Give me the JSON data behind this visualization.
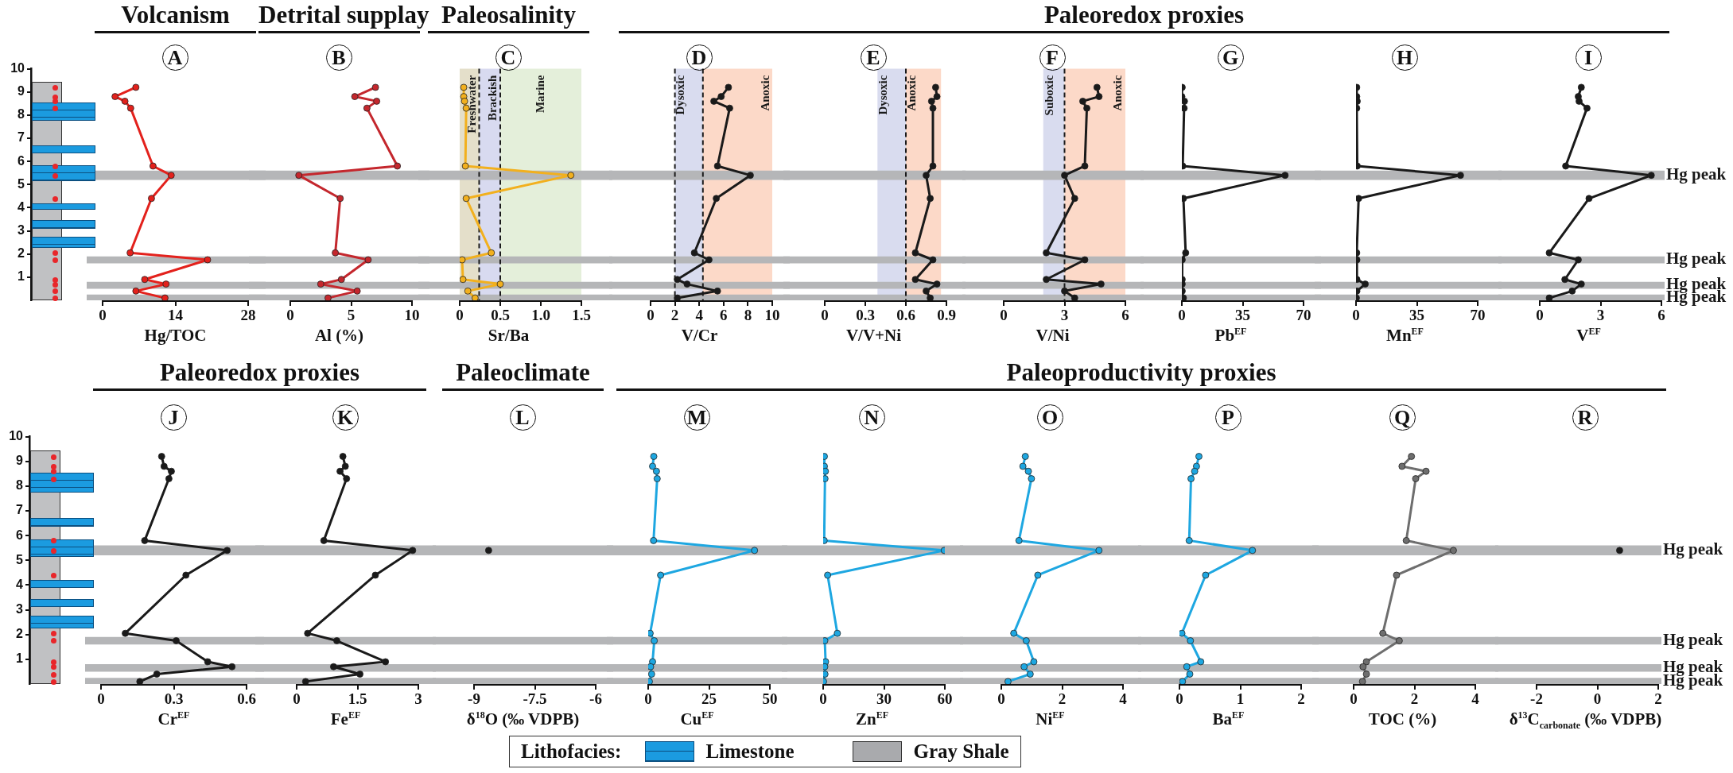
{
  "chart_data": [
    {
      "type": "line",
      "subtitle": "Volcanism",
      "title": "A",
      "xlabel": "Hg/TOC",
      "xlim": [
        0,
        28
      ],
      "xticks": [
        0,
        14,
        28
      ],
      "ylim": [
        0,
        10
      ],
      "yticks": [
        1,
        2,
        3,
        4,
        5,
        6,
        7,
        8,
        9,
        10
      ],
      "marker": "circle",
      "bands": [
        {
          "axis": "y",
          "from": 5.2,
          "to": 5.6,
          "color": "#b5b6b8"
        },
        {
          "axis": "y",
          "from": 1.6,
          "to": 1.9,
          "color": "#b5b6b8"
        },
        {
          "axis": "y",
          "from": 0.5,
          "to": 0.8,
          "color": "#b5b6b8"
        },
        {
          "axis": "y",
          "from": 0,
          "to": 0.25,
          "color": "#b5b6b8"
        }
      ],
      "series": [
        {
          "color": "#e3211c",
          "x": [
            6.4,
            2.4,
            4.3,
            5.4,
            9.7,
            13.2,
            9.4,
            5.3,
            20.2,
            8.1,
            12.2,
            6.4,
            12.0
          ],
          "values": [
            9.2,
            8.8,
            8.6,
            8.3,
            5.8,
            5.4,
            4.4,
            2.05,
            1.75,
            0.9,
            0.7,
            0.4,
            0.1
          ]
        }
      ]
    },
    {
      "type": "line",
      "subtitle": "Detrital supplay",
      "title": "B",
      "xlabel": "Al (%)",
      "xlim": [
        0,
        10
      ],
      "xticks": [
        0,
        5,
        10
      ],
      "ylim": [
        0,
        10
      ],
      "yticks": [
        1,
        2,
        3,
        4,
        5,
        6,
        7,
        8,
        9,
        10
      ],
      "tick_labels": "x",
      "marker": "circle",
      "bands": [
        {
          "axis": "y",
          "from": 5.2,
          "to": 5.6,
          "color": "#b5b6b8"
        },
        {
          "axis": "y",
          "from": 1.6,
          "to": 1.9,
          "color": "#b5b6b8"
        },
        {
          "axis": "y",
          "from": 0.5,
          "to": 0.8,
          "color": "#b5b6b8"
        },
        {
          "axis": "y",
          "from": 0,
          "to": 0.25,
          "color": "#b5b6b8"
        }
      ],
      "series": [
        {
          "color": "#c4272d",
          "x": [
            7.0,
            5.3,
            7.1,
            6.3,
            8.8,
            0.7,
            4.1,
            3.7,
            6.4,
            4.2,
            2.5,
            5.5,
            3.1
          ],
          "values": [
            9.2,
            8.8,
            8.6,
            8.3,
            5.8,
            5.4,
            4.4,
            2.05,
            1.75,
            0.9,
            0.7,
            0.4,
            0.1
          ]
        }
      ]
    },
    {
      "type": "line",
      "subtitle": "Paleosalinity",
      "title": "C",
      "xlabel": "Sr/Ba",
      "xlim": [
        0,
        1.5
      ],
      "xticks": [
        0,
        0.5,
        {
          "value": 1,
          "label": "1.0"
        },
        1.5
      ],
      "ylim": [
        0,
        10
      ],
      "yticks": [
        1,
        2,
        3,
        4,
        5,
        6,
        7,
        8,
        9,
        10
      ],
      "tick_labels": "x",
      "marker": "circle",
      "bands": [
        {
          "axis": "x",
          "from": 0,
          "to": 0.24,
          "label": "Freshwater",
          "color": "#e4dfca"
        },
        {
          "axis": "x",
          "from": 0.24,
          "to": 0.5,
          "label": "Brackish",
          "color": "#d8daf0"
        },
        {
          "axis": "x",
          "from": 0.5,
          "to": 1.5,
          "label": "Marine",
          "color": "#e4efda"
        },
        {
          "axis": "y",
          "from": 5.2,
          "to": 5.6,
          "color": "#b5b6b8"
        },
        {
          "axis": "y",
          "from": 1.6,
          "to": 1.9,
          "color": "#b5b6b8"
        },
        {
          "axis": "y",
          "from": 0.5,
          "to": 0.8,
          "color": "#b5b6b8"
        },
        {
          "axis": "y",
          "from": 0,
          "to": 0.25,
          "color": "#b5b6b8"
        }
      ],
      "ref_lines": [
        {
          "axis": "x",
          "value": 0.24,
          "color": "#1a1a1a",
          "line_style": "dashed"
        },
        {
          "axis": "x",
          "value": 0.5,
          "color": "#1a1a1a",
          "line_style": "dashed"
        }
      ],
      "series": [
        {
          "color": "#f2b01e",
          "x": [
            0.05,
            0.05,
            0.06,
            0.08,
            0.07,
            1.37,
            0.08,
            0.39,
            0.03,
            0.04,
            0.5,
            0.1,
            0.19
          ],
          "values": [
            9.2,
            8.8,
            8.6,
            8.3,
            5.8,
            5.4,
            4.4,
            2.05,
            1.75,
            0.9,
            0.7,
            0.4,
            0.1
          ]
        }
      ]
    },
    {
      "type": "other",
      "title": "Paleoredox proxies"
    },
    {
      "type": "line",
      "title": "D",
      "xlabel": "V/Cr",
      "xlim": [
        0,
        10
      ],
      "xticks": [
        0,
        2,
        4,
        6,
        8,
        10
      ],
      "ylim": [
        0,
        10
      ],
      "yticks": [
        1,
        2,
        3,
        4,
        5,
        6,
        7,
        8,
        9,
        10
      ],
      "tick_labels": "x",
      "marker": "circle",
      "bands": [
        {
          "axis": "x",
          "from": 2,
          "to": 4.3,
          "label": "Dysoxic",
          "color": "#d9dcef"
        },
        {
          "axis": "x",
          "from": 4.3,
          "to": 10,
          "label": "Anoxic",
          "color": "#fcd9c8"
        },
        {
          "axis": "y",
          "from": 5.2,
          "to": 5.6,
          "color": "#b5b6b8"
        },
        {
          "axis": "y",
          "from": 1.6,
          "to": 1.9,
          "color": "#b5b6b8"
        },
        {
          "axis": "y",
          "from": 0.5,
          "to": 0.8,
          "color": "#b5b6b8"
        },
        {
          "axis": "y",
          "from": 0,
          "to": 0.25,
          "color": "#b5b6b8"
        }
      ],
      "ref_lines": [
        {
          "axis": "x",
          "value": 2,
          "color": "#1a1a1a",
          "line_style": "dashed"
        },
        {
          "axis": "x",
          "value": 4.3,
          "color": "#1a1a1a",
          "line_style": "dashed"
        }
      ],
      "series": [
        {
          "color": "#1a1a1a",
          "x": [
            6.4,
            5.8,
            5.2,
            6.5,
            5.5,
            8.2,
            5.4,
            3.6,
            4.8,
            2.2,
            3.0,
            5.5,
            2.2
          ],
          "values": [
            9.2,
            8.8,
            8.6,
            8.3,
            5.8,
            5.4,
            4.4,
            2.05,
            1.75,
            0.9,
            0.7,
            0.4,
            0.1
          ]
        }
      ]
    },
    {
      "type": "line",
      "title": "E",
      "xlabel": "V/V+Ni",
      "xlim": [
        0,
        0.9
      ],
      "xticks": [
        0,
        0.3,
        0.6,
        0.9
      ],
      "ylim": [
        0,
        10
      ],
      "yticks": [
        1,
        2,
        3,
        4,
        5,
        6,
        7,
        8,
        9,
        10
      ],
      "tick_labels": "x",
      "marker": "circle",
      "bands": [
        {
          "axis": "x",
          "from": 0.39,
          "to": 0.6,
          "label": "Dysoxic",
          "color": "#d9dcef"
        },
        {
          "axis": "x",
          "from": 0.6,
          "to": 0.86,
          "label": "Anoxic",
          "color": "#fcd9c8"
        },
        {
          "axis": "y",
          "from": 5.2,
          "to": 5.6,
          "color": "#b5b6b8"
        },
        {
          "axis": "y",
          "from": 1.6,
          "to": 1.9,
          "color": "#b5b6b8"
        },
        {
          "axis": "y",
          "from": 0.5,
          "to": 0.8,
          "color": "#b5b6b8"
        },
        {
          "axis": "y",
          "from": 0,
          "to": 0.25,
          "color": "#b5b6b8"
        }
      ],
      "ref_lines": [
        {
          "axis": "x",
          "value": 0.6,
          "color": "#1a1a1a",
          "line_style": "dashed"
        }
      ],
      "series": [
        {
          "color": "#1a1a1a",
          "x": [
            0.82,
            0.83,
            0.79,
            0.8,
            0.8,
            0.75,
            0.78,
            0.67,
            0.8,
            0.67,
            0.83,
            0.75,
            0.78
          ],
          "values": [
            9.2,
            8.8,
            8.6,
            8.3,
            5.8,
            5.4,
            4.4,
            2.05,
            1.75,
            0.9,
            0.7,
            0.4,
            0.1
          ]
        }
      ]
    },
    {
      "type": "line",
      "title": "F",
      "xlabel": "V/Ni",
      "xlim": [
        0,
        6
      ],
      "xticks": [
        0,
        3,
        6
      ],
      "ylim": [
        0,
        10
      ],
      "yticks": [
        1,
        2,
        3,
        4,
        5,
        6,
        7,
        8,
        9,
        10
      ],
      "tick_labels": "x",
      "marker": "circle",
      "bands": [
        {
          "axis": "x",
          "from": 1.95,
          "to": 3,
          "label": "Suboxic",
          "color": "#d9dcef"
        },
        {
          "axis": "x",
          "from": 3,
          "to": 6,
          "label": "Anoxic",
          "color": "#fcd9c8"
        },
        {
          "axis": "y",
          "from": 5.2,
          "to": 5.6,
          "color": "#b5b6b8"
        },
        {
          "axis": "y",
          "from": 1.6,
          "to": 1.9,
          "color": "#b5b6b8"
        },
        {
          "axis": "y",
          "from": 0.5,
          "to": 0.8,
          "color": "#b5b6b8"
        },
        {
          "axis": "y",
          "from": 0,
          "to": 0.25,
          "color": "#b5b6b8"
        }
      ],
      "ref_lines": [
        {
          "axis": "x",
          "value": 3,
          "color": "#1a1a1a",
          "line_style": "dashed"
        }
      ],
      "series": [
        {
          "color": "#1a1a1a",
          "x": [
            4.6,
            4.7,
            3.9,
            4.1,
            4.0,
            3.0,
            3.5,
            2.1,
            4.0,
            2.1,
            4.8,
            3.0,
            3.5
          ],
          "values": [
            9.2,
            8.8,
            8.6,
            8.3,
            5.8,
            5.4,
            4.4,
            2.05,
            1.75,
            0.9,
            0.7,
            0.4,
            0.1
          ]
        }
      ]
    },
    {
      "type": "line",
      "title": "G",
      "xlabel": "Pb$^{EF}$",
      "xlim": [
        0,
        70
      ],
      "xticks": [
        0,
        35,
        70
      ],
      "ylim": [
        0,
        10
      ],
      "yticks": [
        1,
        2,
        3,
        4,
        5,
        6,
        7,
        8,
        9,
        10
      ],
      "tick_labels": "x",
      "marker": "circle",
      "bands": [
        {
          "axis": "y",
          "from": 5.2,
          "to": 5.6,
          "color": "#b5b6b8"
        },
        {
          "axis": "y",
          "from": 1.6,
          "to": 1.9,
          "color": "#b5b6b8"
        },
        {
          "axis": "y",
          "from": 0.5,
          "to": 0.8,
          "color": "#b5b6b8"
        },
        {
          "axis": "y",
          "from": 0,
          "to": 0.25,
          "color": "#b5b6b8"
        }
      ],
      "series": [
        {
          "color": "#1a1a1a",
          "x": [
            0.2,
            0,
            1.5,
            1.3,
            0.5,
            59.4,
            0.9,
            2.2,
            0.2,
            0.2,
            0.2,
            0.2,
            0.9
          ],
          "values": [
            9.2,
            8.8,
            8.6,
            8.3,
            5.8,
            5.4,
            4.4,
            2.05,
            1.75,
            0.9,
            0.7,
            0.4,
            0.1
          ]
        }
      ]
    },
    {
      "type": "line",
      "title": "H",
      "xlabel": "Mn$^{EF}$",
      "xlim": [
        0,
        70
      ],
      "xticks": [
        0,
        35,
        70
      ],
      "ylim": [
        0,
        10
      ],
      "yticks": [
        1,
        2,
        3,
        4,
        5,
        6,
        7,
        8,
        9,
        10
      ],
      "tick_labels": "x",
      "marker": "circle",
      "bands": [
        {
          "axis": "y",
          "from": 5.2,
          "to": 5.6,
          "color": "#b5b6b8"
        },
        {
          "axis": "y",
          "from": 1.6,
          "to": 1.9,
          "color": "#b5b6b8"
        },
        {
          "axis": "y",
          "from": 0.5,
          "to": 0.8,
          "color": "#b5b6b8"
        },
        {
          "axis": "y",
          "from": 0,
          "to": 0.25,
          "color": "#b5b6b8"
        }
      ],
      "series": [
        {
          "color": "#1a1a1a",
          "x": [
            0.4,
            0.4,
            0.7,
            0.4,
            0.7,
            60.1,
            1.5,
            0.4,
            0.5,
            0.5,
            5.3,
            0.5,
            0.2
          ],
          "values": [
            9.2,
            8.8,
            8.6,
            8.3,
            5.8,
            5.4,
            4.4,
            2.05,
            1.75,
            0.9,
            0.7,
            0.4,
            0.1
          ]
        }
      ]
    },
    {
      "type": "line",
      "title": "I",
      "xlabel": "V$^{EF}$",
      "xlim": [
        0,
        6
      ],
      "xticks": [
        0,
        3,
        6
      ],
      "ylim": [
        0,
        10
      ],
      "yticks": [
        1,
        2,
        3,
        4,
        5,
        6,
        7,
        8,
        9,
        10
      ],
      "tick_labels": "x",
      "marker": "circle",
      "bands": [
        {
          "axis": "y",
          "from": 5.2,
          "to": 5.6,
          "label": "Hg peak",
          "color": "#b5b6b8"
        },
        {
          "axis": "y",
          "from": 1.6,
          "to": 1.9,
          "label": "Hg peak",
          "color": "#b5b6b8"
        },
        {
          "axis": "y",
          "from": 0.5,
          "to": 0.8,
          "label": "Hg peak",
          "color": "#b5b6b8"
        },
        {
          "axis": "y",
          "from": 0,
          "to": 0.25,
          "label": "Hg peak",
          "color": "#b5b6b8"
        }
      ],
      "series": [
        {
          "color": "#1a1a1a",
          "x": [
            2.05,
            1.9,
            1.94,
            2.33,
            1.28,
            5.5,
            2.43,
            0.47,
            1.9,
            1.24,
            2.05,
            1.6,
            0.47
          ],
          "values": [
            9.2,
            8.8,
            8.6,
            8.3,
            5.8,
            5.4,
            4.4,
            2.05,
            1.75,
            0.9,
            0.7,
            0.4,
            0.1
          ]
        }
      ]
    },
    {
      "type": "other",
      "title": "Paleoredox proxies"
    },
    {
      "type": "line",
      "title": "J",
      "xlabel": "Cr$^{EF}$",
      "xlim": [
        0,
        0.6
      ],
      "xticks": [
        0,
        0.3,
        0.6
      ],
      "ylim": [
        0,
        10
      ],
      "yticks": [
        1,
        2,
        3,
        4,
        5,
        6,
        7,
        8,
        9,
        10
      ],
      "marker": "circle",
      "bands": [
        {
          "axis": "y",
          "from": 5.2,
          "to": 5.6,
          "color": "#b5b6b8"
        },
        {
          "axis": "y",
          "from": 1.6,
          "to": 1.9,
          "color": "#b5b6b8"
        },
        {
          "axis": "y",
          "from": 0.5,
          "to": 0.8,
          "color": "#b5b6b8"
        },
        {
          "axis": "y",
          "from": 0,
          "to": 0.25,
          "color": "#b5b6b8"
        }
      ],
      "series": [
        {
          "color": "#1a1a1a",
          "x": [
            0.25,
            0.26,
            0.29,
            0.28,
            0.18,
            0.52,
            0.35,
            0.1,
            0.31,
            0.44,
            0.54,
            0.23,
            0.16
          ],
          "values": [
            9.2,
            8.8,
            8.6,
            8.3,
            5.8,
            5.4,
            4.4,
            2.05,
            1.75,
            0.9,
            0.7,
            0.4,
            0.1
          ]
        }
      ]
    },
    {
      "type": "line",
      "title": "K",
      "xlabel": "Fe$^{EF}$",
      "xlim": [
        0,
        3
      ],
      "xticks": [
        0,
        1.5,
        3
      ],
      "ylim": [
        0,
        10
      ],
      "yticks": [
        1,
        2,
        3,
        4,
        5,
        6,
        7,
        8,
        9,
        10
      ],
      "tick_labels": "x",
      "marker": "circle",
      "bands": [
        {
          "axis": "y",
          "from": 5.2,
          "to": 5.6,
          "color": "#b5b6b8"
        },
        {
          "axis": "y",
          "from": 1.6,
          "to": 1.9,
          "color": "#b5b6b8"
        },
        {
          "axis": "y",
          "from": 0.5,
          "to": 0.8,
          "color": "#b5b6b8"
        },
        {
          "axis": "y",
          "from": 0,
          "to": 0.25,
          "color": "#b5b6b8"
        }
      ],
      "series": [
        {
          "color": "#1a1a1a",
          "x": [
            1.14,
            1.2,
            1.07,
            1.23,
            0.67,
            2.86,
            1.94,
            0.27,
            0.99,
            2.19,
            0.91,
            1.56,
            0.22
          ],
          "values": [
            9.2,
            8.8,
            8.6,
            8.3,
            5.8,
            5.4,
            4.4,
            2.05,
            1.75,
            0.9,
            0.7,
            0.4,
            0.1
          ]
        }
      ]
    },
    {
      "type": "scatter",
      "subtitle": "Paleoclimate",
      "title": "L",
      "xlabel": "δ$^{18}$O (‰ VDPB)",
      "xlim": [
        -9,
        -6
      ],
      "xticks": [
        -9,
        -7.5,
        -6
      ],
      "ylim": [
        0,
        10
      ],
      "yticks": [
        1,
        2,
        3,
        4,
        5,
        6,
        7,
        8,
        9,
        10
      ],
      "tick_labels": "x",
      "marker": "circle",
      "bands": [
        {
          "axis": "y",
          "from": 5.2,
          "to": 5.6,
          "color": "#b5b6b8"
        },
        {
          "axis": "y",
          "from": 1.6,
          "to": 1.9,
          "color": "#b5b6b8"
        },
        {
          "axis": "y",
          "from": 0.5,
          "to": 0.8,
          "color": "#b5b6b8"
        },
        {
          "axis": "y",
          "from": 0,
          "to": 0.25,
          "color": "#b5b6b8"
        }
      ],
      "series": [
        {
          "color": "#1a1a1a",
          "x": [
            -8.64
          ],
          "values": [
            5.4
          ]
        }
      ]
    },
    {
      "type": "other",
      "title": "Paleoproductivity proxies"
    },
    {
      "type": "line",
      "title": "M",
      "xlabel": "Cu$^{EF}$",
      "xlim": [
        0,
        50
      ],
      "xticks": [
        0,
        25,
        50
      ],
      "ylim": [
        0,
        10
      ],
      "yticks": [
        1,
        2,
        3,
        4,
        5,
        6,
        7,
        8,
        9,
        10
      ],
      "tick_labels": "x",
      "marker": "circle",
      "bands": [
        {
          "axis": "y",
          "from": 5.2,
          "to": 5.6,
          "color": "#b5b6b8"
        },
        {
          "axis": "y",
          "from": 1.6,
          "to": 1.9,
          "color": "#b5b6b8"
        },
        {
          "axis": "y",
          "from": 0.5,
          "to": 0.8,
          "color": "#b5b6b8"
        },
        {
          "axis": "y",
          "from": 0,
          "to": 0.25,
          "color": "#b5b6b8"
        }
      ],
      "series": [
        {
          "color": "#1ea7e1",
          "x": [
            2.3,
            1.8,
            3.4,
            3.7,
            2.2,
            43.7,
            5.1,
            0.8,
            2.5,
            1.8,
            1.0,
            1.4,
            0.5
          ],
          "values": [
            9.2,
            8.8,
            8.6,
            8.3,
            5.8,
            5.4,
            4.4,
            2.05,
            1.75,
            0.9,
            0.7,
            0.4,
            0.1
          ]
        }
      ]
    },
    {
      "type": "line",
      "title": "N",
      "xlabel": "Zn$^{EF}$",
      "xlim": [
        0,
        60
      ],
      "xticks": [
        0,
        30,
        60
      ],
      "ylim": [
        0,
        10
      ],
      "yticks": [
        1,
        2,
        3,
        4,
        5,
        6,
        7,
        8,
        9,
        10
      ],
      "tick_labels": "x",
      "marker": "circle",
      "bands": [
        {
          "axis": "y",
          "from": 5.2,
          "to": 5.6,
          "color": "#b5b6b8"
        },
        {
          "axis": "y",
          "from": 1.6,
          "to": 1.9,
          "color": "#b5b6b8"
        },
        {
          "axis": "y",
          "from": 0.5,
          "to": 0.8,
          "color": "#b5b6b8"
        },
        {
          "axis": "y",
          "from": 0,
          "to": 0.25,
          "color": "#b5b6b8"
        }
      ],
      "series": [
        {
          "color": "#1ea7e1",
          "x": [
            0.6,
            0.6,
            1.1,
            0.9,
            0.5,
            59.7,
            2.2,
            7.0,
            0.8,
            1.2,
            0.8,
            0.9,
            0.2
          ],
          "values": [
            9.2,
            8.8,
            8.6,
            8.3,
            5.8,
            5.4,
            4.4,
            2.05,
            1.75,
            0.9,
            0.7,
            0.4,
            0.1
          ]
        }
      ]
    },
    {
      "type": "line",
      "title": "O",
      "xlabel": "Ni$^{EF}$",
      "xlim": [
        0,
        4
      ],
      "xticks": [
        0,
        2,
        4
      ],
      "ylim": [
        0,
        10
      ],
      "yticks": [
        1,
        2,
        3,
        4,
        5,
        6,
        7,
        8,
        9,
        10
      ],
      "tick_labels": "x",
      "marker": "circle",
      "bands": [
        {
          "axis": "y",
          "from": 5.2,
          "to": 5.6,
          "color": "#b5b6b8"
        },
        {
          "axis": "y",
          "from": 1.6,
          "to": 1.9,
          "color": "#b5b6b8"
        },
        {
          "axis": "y",
          "from": 0.5,
          "to": 0.8,
          "color": "#b5b6b8"
        },
        {
          "axis": "y",
          "from": 0,
          "to": 0.25,
          "color": "#b5b6b8"
        }
      ],
      "series": [
        {
          "color": "#1ea7e1",
          "x": [
            0.79,
            0.71,
            0.89,
            0.99,
            0.58,
            3.21,
            1.2,
            0.41,
            0.82,
            1.07,
            0.75,
            0.95,
            0.22
          ],
          "values": [
            9.2,
            8.8,
            8.6,
            8.3,
            5.8,
            5.4,
            4.4,
            2.05,
            1.75,
            0.9,
            0.7,
            0.4,
            0.1
          ]
        }
      ]
    },
    {
      "type": "line",
      "title": "P",
      "xlabel": "Ba$^{EF}$",
      "xlim": [
        0,
        2
      ],
      "xticks": [
        0,
        1,
        2
      ],
      "ylim": [
        0,
        10
      ],
      "yticks": [
        1,
        2,
        3,
        4,
        5,
        6,
        7,
        8,
        9,
        10
      ],
      "tick_labels": "x",
      "marker": "circle",
      "bands": [
        {
          "axis": "y",
          "from": 5.2,
          "to": 5.6,
          "color": "#b5b6b8"
        },
        {
          "axis": "y",
          "from": 1.6,
          "to": 1.9,
          "color": "#b5b6b8"
        },
        {
          "axis": "y",
          "from": 0.5,
          "to": 0.8,
          "color": "#b5b6b8"
        },
        {
          "axis": "y",
          "from": 0,
          "to": 0.25,
          "color": "#b5b6b8"
        }
      ],
      "series": [
        {
          "color": "#1ea7e1",
          "x": [
            0.32,
            0.28,
            0.25,
            0.19,
            0.16,
            1.2,
            0.43,
            0.04,
            0.18,
            0.35,
            0.12,
            0.17,
            0.05
          ],
          "values": [
            9.2,
            8.8,
            8.6,
            8.3,
            5.8,
            5.4,
            4.4,
            2.05,
            1.75,
            0.9,
            0.7,
            0.4,
            0.1
          ]
        }
      ]
    },
    {
      "type": "line",
      "title": "Q",
      "xlabel": "TOC (%)",
      "xlim": [
        0,
        4
      ],
      "xticks": [
        0,
        2,
        4
      ],
      "ylim": [
        0,
        10
      ],
      "yticks": [
        1,
        2,
        3,
        4,
        5,
        6,
        7,
        8,
        9,
        10
      ],
      "tick_labels": "x",
      "marker": "circle",
      "bands": [
        {
          "axis": "y",
          "from": 5.2,
          "to": 5.6,
          "color": "#b5b6b8"
        },
        {
          "axis": "y",
          "from": 1.6,
          "to": 1.9,
          "color": "#b5b6b8"
        },
        {
          "axis": "y",
          "from": 0.5,
          "to": 0.8,
          "color": "#b5b6b8"
        },
        {
          "axis": "y",
          "from": 0,
          "to": 0.25,
          "color": "#b5b6b8"
        }
      ],
      "series": [
        {
          "color": "#6e6e6e",
          "x": [
            1.9,
            1.59,
            2.38,
            2.04,
            1.73,
            3.28,
            1.41,
            0.96,
            1.5,
            0.42,
            0.31,
            0.42,
            0.29
          ],
          "values": [
            9.2,
            8.8,
            8.6,
            8.3,
            5.8,
            5.4,
            4.4,
            2.05,
            1.75,
            0.9,
            0.7,
            0.4,
            0.1
          ]
        }
      ]
    },
    {
      "type": "scatter",
      "title": "R",
      "xlabel": "δ$^{13}$C$_{carbonate}$ (‰ VDPB)",
      "xlim": [
        -2,
        2
      ],
      "xticks": [
        -2,
        0,
        2
      ],
      "ylim": [
        0,
        10
      ],
      "yticks": [
        1,
        2,
        3,
        4,
        5,
        6,
        7,
        8,
        9,
        10
      ],
      "tick_labels": "x",
      "marker": "circle",
      "bands": [
        {
          "axis": "y",
          "from": 5.2,
          "to": 5.6,
          "label": "Hg peak",
          "color": "#b5b6b8"
        },
        {
          "axis": "y",
          "from": 1.6,
          "to": 1.9,
          "label": "Hg peak",
          "color": "#b5b6b8"
        },
        {
          "axis": "y",
          "from": 0.5,
          "to": 0.8,
          "label": "Hg peak",
          "color": "#b5b6b8"
        },
        {
          "axis": "y",
          "from": 0,
          "to": 0.25,
          "label": "Hg peak",
          "color": "#b5b6b8"
        }
      ],
      "series": [
        {
          "color": "#1a1a1a",
          "x": [
            0.73
          ],
          "values": [
            5.4
          ]
        }
      ]
    },
    {
      "type": "other",
      "title": "Lithofacies:",
      "annotations": [
        "Limestone",
        "Gray Shale"
      ]
    }
  ]
}
